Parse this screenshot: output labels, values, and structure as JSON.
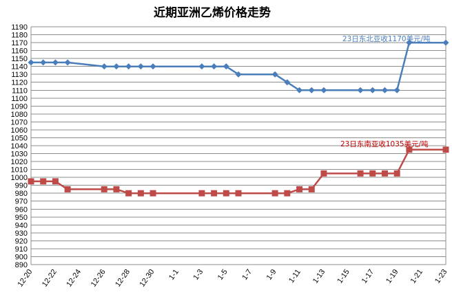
{
  "chart_data": {
    "type": "line",
    "title": "近期亚洲乙烯价格走势",
    "ylim": [
      890,
      1190
    ],
    "ytick_step": 10,
    "grid": true,
    "x_axis": {
      "start_day": 0,
      "end_day": 34,
      "tick_labels": [
        "12-20",
        "12-22",
        "12-24",
        "12-26",
        "12-28",
        "12-30",
        "1-1",
        "1-3",
        "1-5",
        "1-7",
        "1-9",
        "1-11",
        "1-13",
        "1-15",
        "1-17",
        "1-19",
        "1-21",
        "1-23"
      ]
    },
    "series": [
      {
        "color": "#4a7ebb",
        "marker": "diamond",
        "points": [
          {
            "date": "12-20",
            "y": 1145
          },
          {
            "date": "12-21",
            "y": 1145
          },
          {
            "date": "12-22",
            "y": 1145
          },
          {
            "date": "12-23",
            "y": 1145
          },
          {
            "date": "12-26",
            "y": 1140
          },
          {
            "date": "12-27",
            "y": 1140
          },
          {
            "date": "12-28",
            "y": 1140
          },
          {
            "date": "12-29",
            "y": 1140
          },
          {
            "date": "12-30",
            "y": 1140
          },
          {
            "date": "1-3",
            "y": 1140
          },
          {
            "date": "1-4",
            "y": 1140
          },
          {
            "date": "1-5",
            "y": 1140
          },
          {
            "date": "1-6",
            "y": 1130
          },
          {
            "date": "1-9",
            "y": 1130
          },
          {
            "date": "1-10",
            "y": 1120
          },
          {
            "date": "1-11",
            "y": 1110
          },
          {
            "date": "1-12",
            "y": 1110
          },
          {
            "date": "1-13",
            "y": 1110
          },
          {
            "date": "1-16",
            "y": 1110
          },
          {
            "date": "1-17",
            "y": 1110
          },
          {
            "date": "1-18",
            "y": 1110
          },
          {
            "date": "1-19",
            "y": 1110
          },
          {
            "date": "1-20",
            "y": 1170
          },
          {
            "date": "1-23",
            "y": 1170
          }
        ]
      },
      {
        "color": "#be4b48",
        "marker": "square",
        "points": [
          {
            "date": "12-20",
            "y": 995
          },
          {
            "date": "12-21",
            "y": 995
          },
          {
            "date": "12-22",
            "y": 995
          },
          {
            "date": "12-23",
            "y": 985
          },
          {
            "date": "12-26",
            "y": 985
          },
          {
            "date": "12-27",
            "y": 985
          },
          {
            "date": "12-28",
            "y": 980
          },
          {
            "date": "12-29",
            "y": 980
          },
          {
            "date": "12-30",
            "y": 980
          },
          {
            "date": "1-3",
            "y": 980
          },
          {
            "date": "1-4",
            "y": 980
          },
          {
            "date": "1-5",
            "y": 980
          },
          {
            "date": "1-6",
            "y": 980
          },
          {
            "date": "1-9",
            "y": 980
          },
          {
            "date": "1-10",
            "y": 980
          },
          {
            "date": "1-11",
            "y": 985
          },
          {
            "date": "1-12",
            "y": 985
          },
          {
            "date": "1-13",
            "y": 1005
          },
          {
            "date": "1-16",
            "y": 1005
          },
          {
            "date": "1-17",
            "y": 1005
          },
          {
            "date": "1-18",
            "y": 1005
          },
          {
            "date": "1-19",
            "y": 1005
          },
          {
            "date": "1-20",
            "y": 1035
          },
          {
            "date": "1-23",
            "y": 1035
          }
        ]
      }
    ],
    "annotations": [
      {
        "text": "23日东北亚收1170美元/吨",
        "color": "#4a7ebb"
      },
      {
        "text": "23日东南亚收1035美元/吨",
        "color": "#c00000"
      }
    ]
  }
}
